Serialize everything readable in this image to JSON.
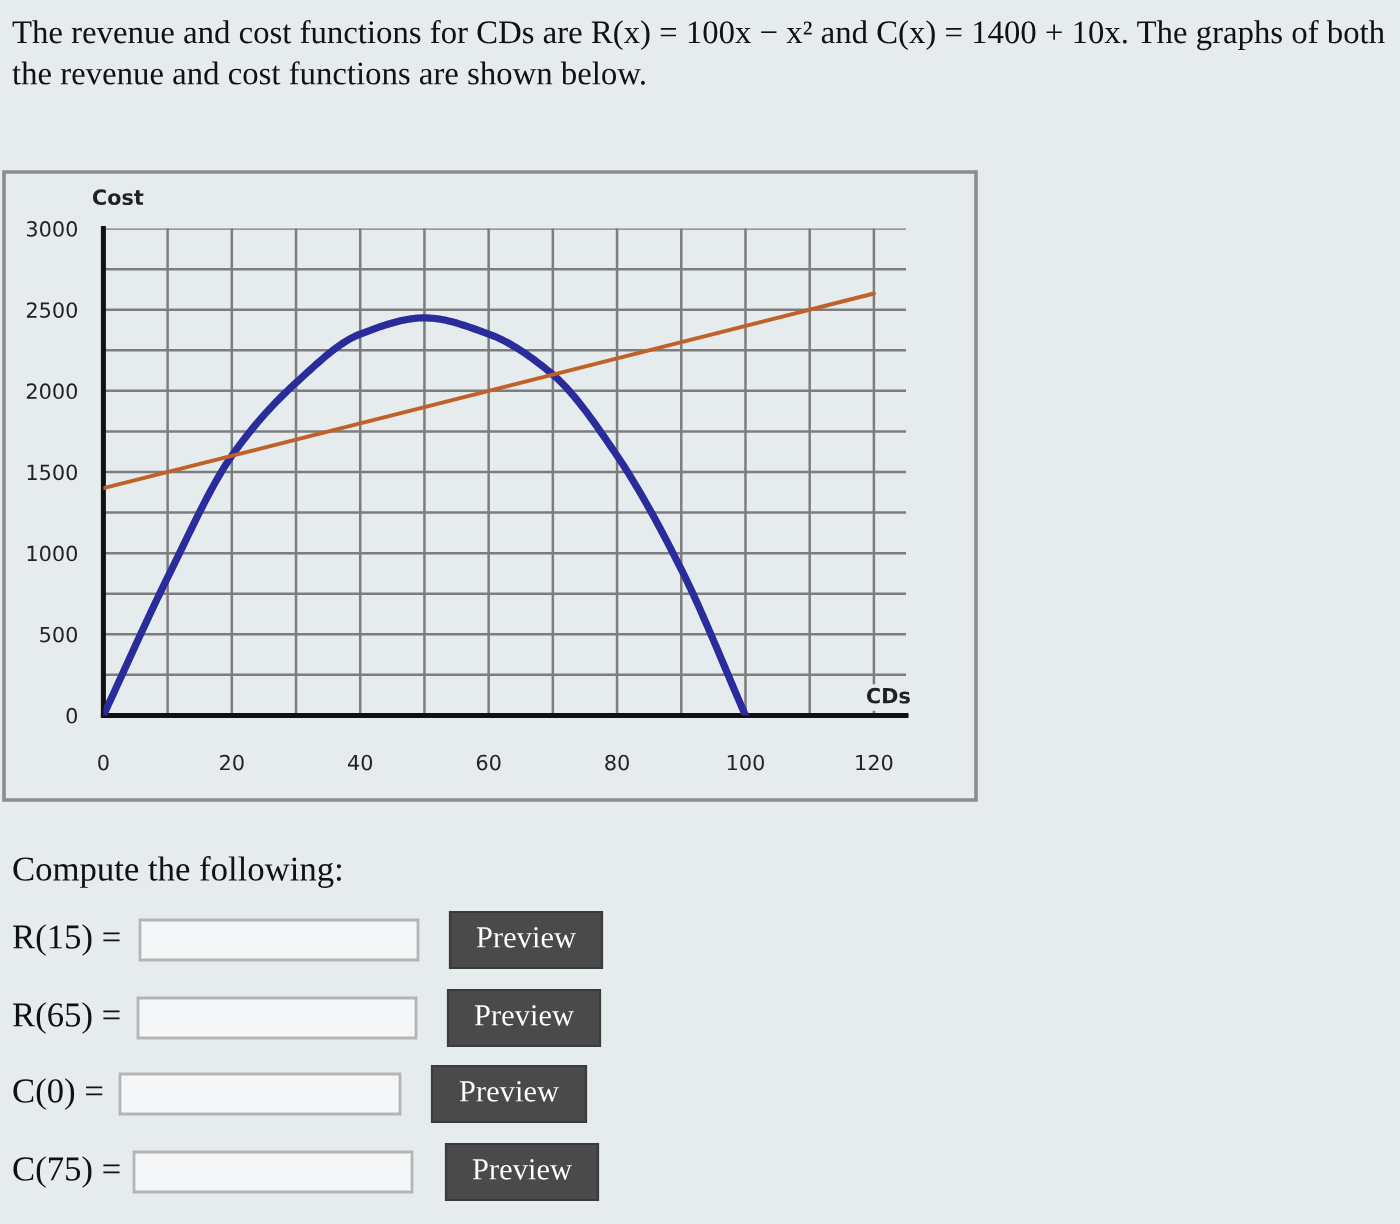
{
  "chart_data": {
    "type": "line",
    "title": "The revenue and cost functions for CDs are R(x) = 100x − x² and C(x) = 1400 + 10x. The graphs of both the revenue and cost functions are shown below.",
    "xlabel": "CDs",
    "ylabel": "Cost",
    "series": [
      {
        "color": "#2a2c9c",
        "x": [
          0,
          10,
          20,
          30,
          40,
          50,
          60,
          70,
          80,
          90,
          100
        ],
        "values": [
          0,
          850,
          1600,
          2050,
          2350,
          2450,
          2350,
          2100,
          1600,
          900,
          0
        ]
      },
      {
        "color": "#c0612a",
        "x": [
          0,
          120
        ],
        "values": [
          1400,
          2600
        ]
      }
    ],
    "xlim": [
      0,
      125
    ],
    "ylim": [
      0,
      3000
    ],
    "xticks": [
      0,
      {
        "value": 10,
        "label": null
      },
      20,
      {
        "value": 30,
        "label": null
      },
      40,
      {
        "value": 50,
        "label": null
      },
      60,
      {
        "value": 70,
        "label": null
      },
      80,
      {
        "value": 90,
        "label": null
      },
      100,
      {
        "value": 110,
        "label": null
      },
      120
    ],
    "yticks": [
      0,
      {
        "value": 250,
        "label": null
      },
      500,
      {
        "value": 750,
        "label": null
      },
      1000,
      {
        "value": 1250,
        "label": null
      },
      1500,
      {
        "value": 1750,
        "label": null
      },
      2000,
      {
        "value": 2250,
        "label": null
      },
      2500,
      {
        "value": 2750,
        "label": null
      },
      3000
    ],
    "grid": true,
    "annotations": [
      "Compute the following:",
      "R(15) =",
      "R(65) =",
      "C(0) =",
      "C(75) =",
      "Preview",
      "Preview",
      "Preview",
      "Preview"
    ]
  }
}
